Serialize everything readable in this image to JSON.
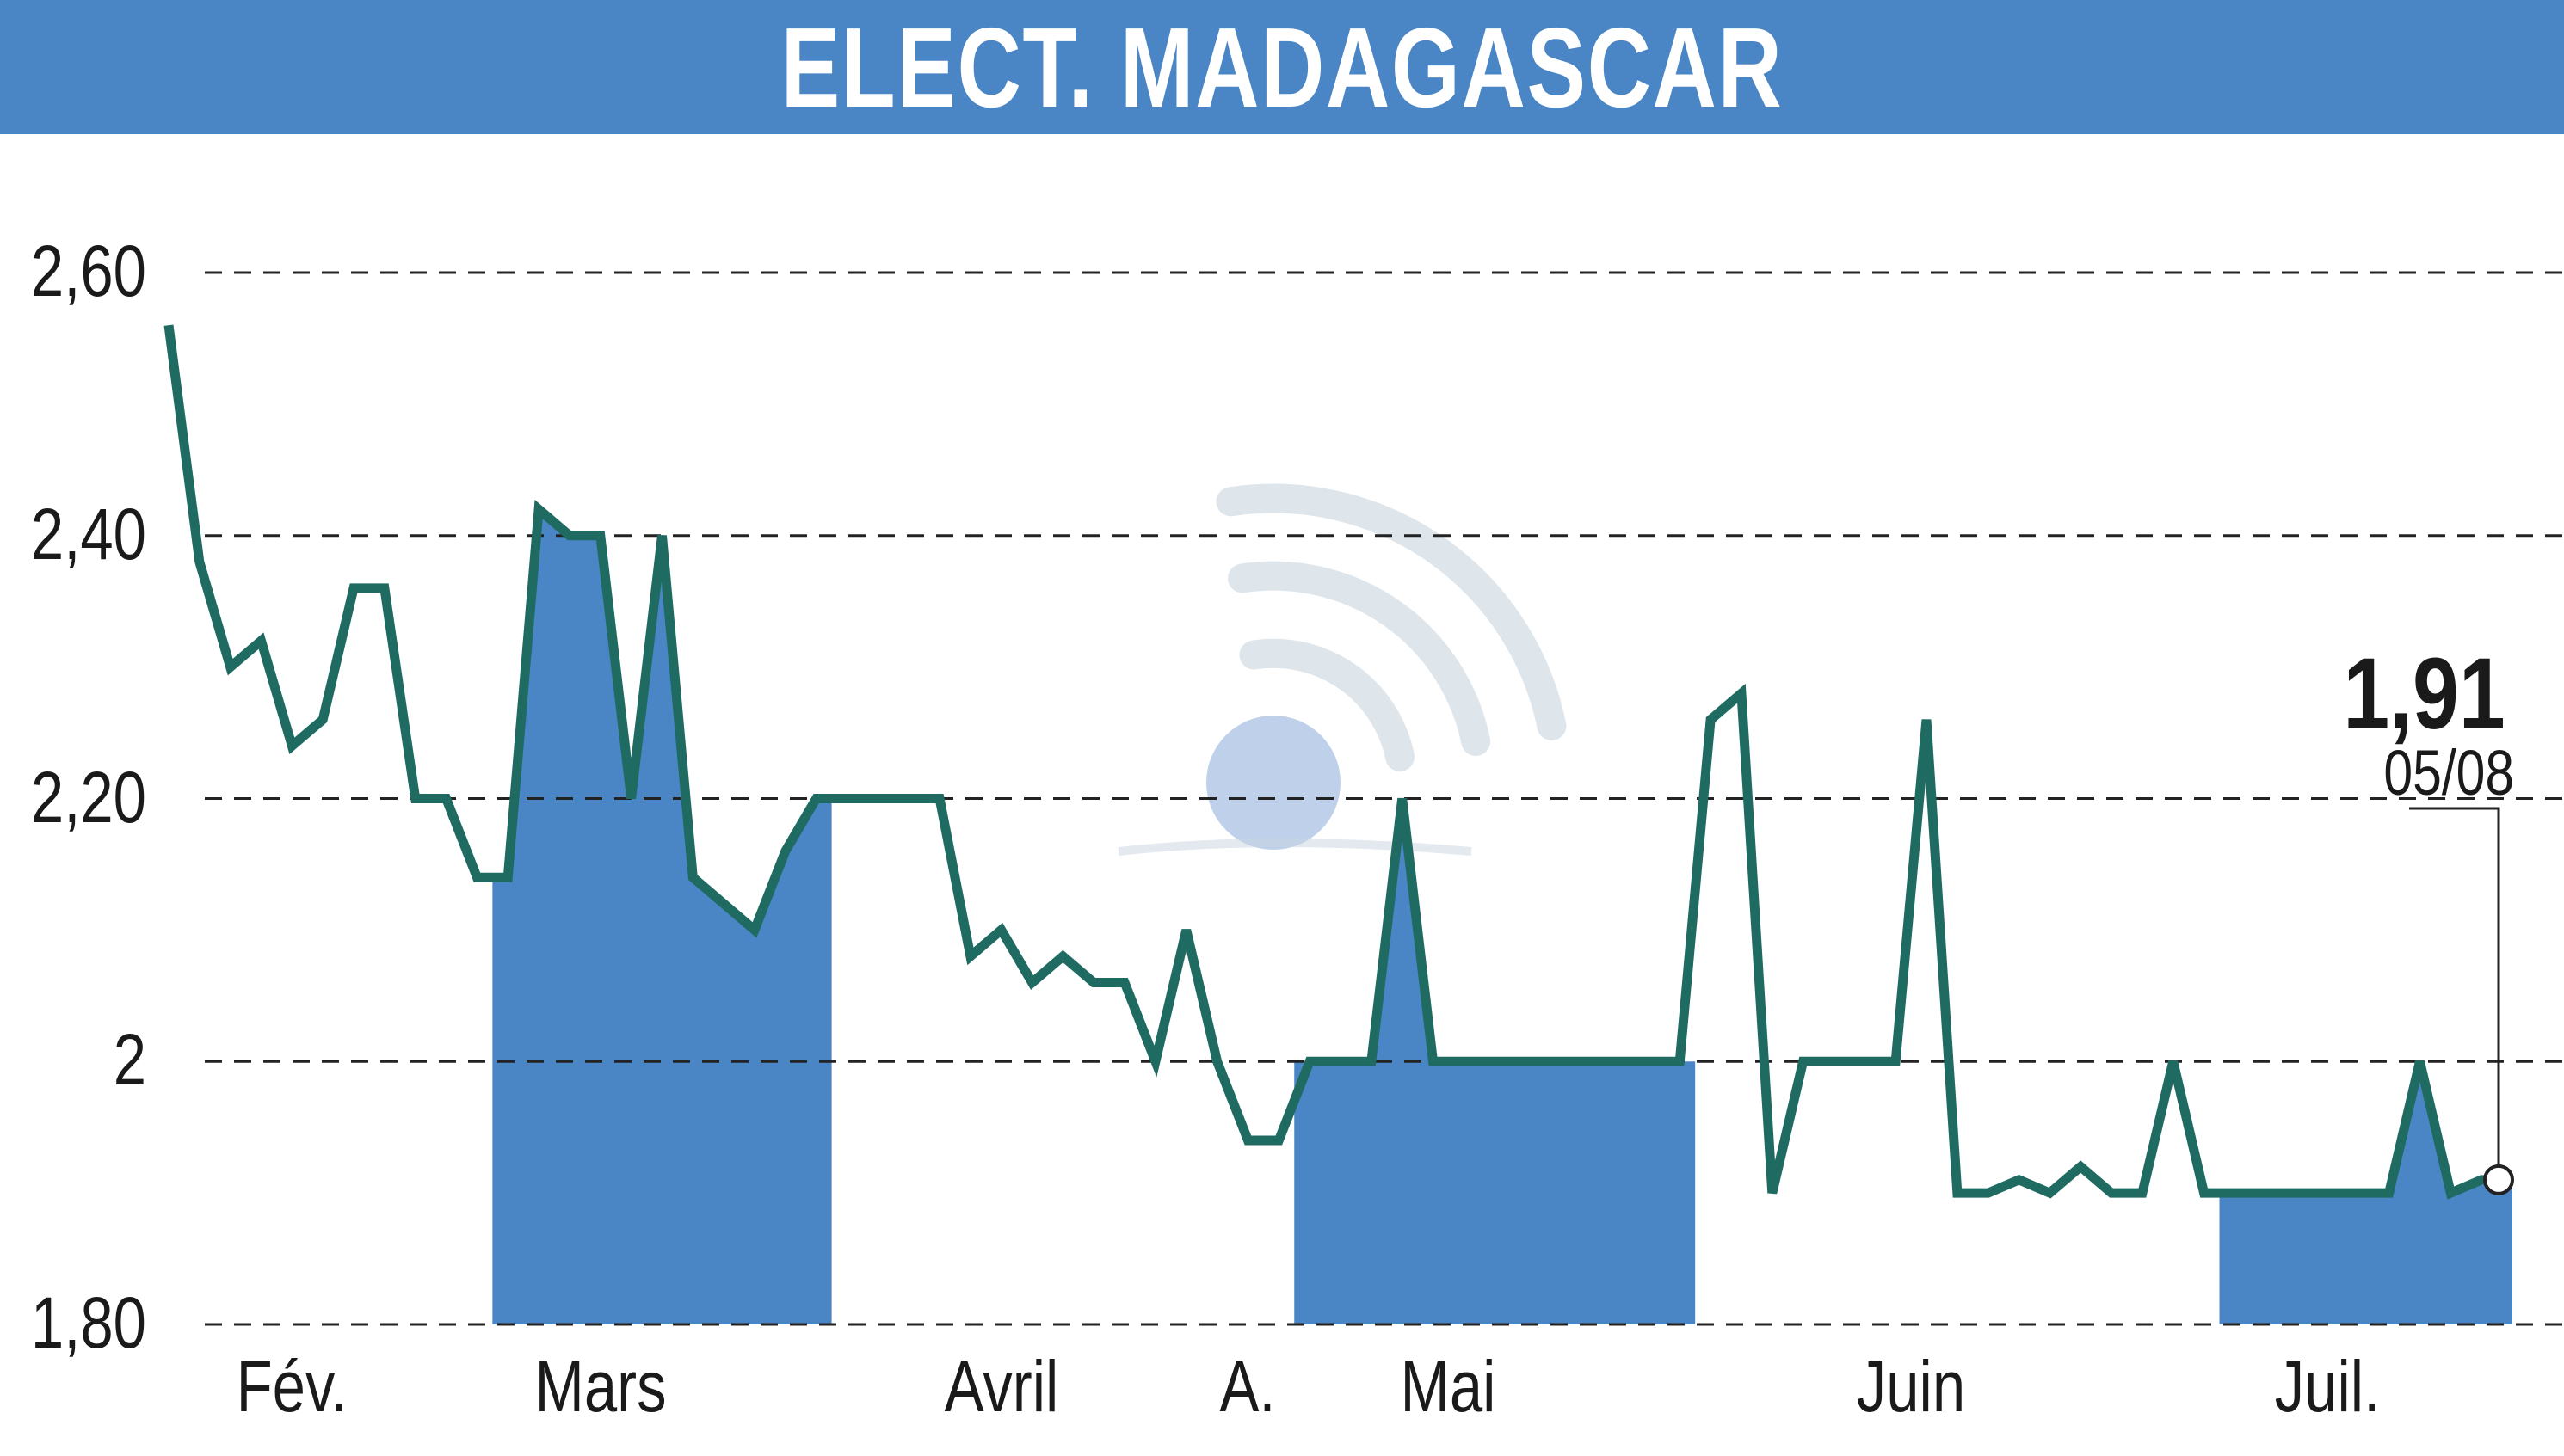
{
  "header": {
    "title": "ELECT. MADAGASCAR"
  },
  "colors": {
    "title_bar": "#4a86c5",
    "line": "#1f6b62",
    "fill": "#4a86c5",
    "grid": "#222222",
    "watermark": "#c8d3dd"
  },
  "watermark_icon": "broadcast-signal-icon",
  "chart_data": {
    "type": "line",
    "title": "ELECT. MADAGASCAR",
    "xlabel": "",
    "ylabel": "",
    "ylim": [
      1.8,
      2.63
    ],
    "yticks": [
      {
        "value": 2.6,
        "label": "2,60"
      },
      {
        "value": 2.4,
        "label": "2,40"
      },
      {
        "value": 2.2,
        "label": "2,20"
      },
      {
        "value": 2.0,
        "label": "2"
      },
      {
        "value": 1.8,
        "label": "1,80"
      }
    ],
    "grid": true,
    "xlim": [
      0,
      76
    ],
    "month_labels": [
      {
        "label": "Fév.",
        "pos": 4.0
      },
      {
        "label": "Mars",
        "pos": 14.0
      },
      {
        "label": "Avril",
        "pos": 27.0
      },
      {
        "label": "A.",
        "pos": 35.0
      },
      {
        "label": "Mai",
        "pos": 41.5
      },
      {
        "label": "Juin",
        "pos": 56.5
      },
      {
        "label": "Juil.",
        "pos": 70.0
      }
    ],
    "shaded_month_spans": [
      [
        10.5,
        21.5
      ],
      [
        36.5,
        49.5
      ],
      [
        66.5,
        76.0
      ]
    ],
    "series": [
      {
        "values": [
          [
            0,
            2.56
          ],
          [
            1,
            2.38
          ],
          [
            2,
            2.3
          ],
          [
            3,
            2.32
          ],
          [
            4,
            2.24
          ],
          [
            5,
            2.26
          ],
          [
            6,
            2.36
          ],
          [
            7,
            2.36
          ],
          [
            8,
            2.2
          ],
          [
            9,
            2.2
          ],
          [
            10,
            2.14
          ],
          [
            11,
            2.14
          ],
          [
            12,
            2.42
          ],
          [
            13,
            2.4
          ],
          [
            14,
            2.4
          ],
          [
            15,
            2.2
          ],
          [
            16,
            2.4
          ],
          [
            17,
            2.14
          ],
          [
            18,
            2.12
          ],
          [
            19,
            2.1
          ],
          [
            20,
            2.16
          ],
          [
            21,
            2.2
          ],
          [
            22,
            2.2
          ],
          [
            23,
            2.2
          ],
          [
            24,
            2.2
          ],
          [
            25,
            2.2
          ],
          [
            26,
            2.08
          ],
          [
            27,
            2.1
          ],
          [
            28,
            2.06
          ],
          [
            29,
            2.08
          ],
          [
            30,
            2.06
          ],
          [
            31,
            2.06
          ],
          [
            32,
            2.0
          ],
          [
            33,
            2.1
          ],
          [
            34,
            2.0
          ],
          [
            35,
            1.94
          ],
          [
            36,
            1.94
          ],
          [
            37,
            2.0
          ],
          [
            38,
            2.0
          ],
          [
            39,
            2.0
          ],
          [
            40,
            2.2
          ],
          [
            41,
            2.0
          ],
          [
            42,
            2.0
          ],
          [
            43,
            2.0
          ],
          [
            44,
            2.0
          ],
          [
            45,
            2.0
          ],
          [
            46,
            2.0
          ],
          [
            47,
            2.0
          ],
          [
            48,
            2.0
          ],
          [
            49,
            2.0
          ],
          [
            50,
            2.26
          ],
          [
            51,
            2.28
          ],
          [
            52,
            1.9
          ],
          [
            53,
            2.0
          ],
          [
            54,
            2.0
          ],
          [
            55,
            2.0
          ],
          [
            56,
            2.0
          ],
          [
            57,
            2.26
          ],
          [
            58,
            1.9
          ],
          [
            59,
            1.9
          ],
          [
            60,
            1.91
          ],
          [
            61,
            1.9
          ],
          [
            62,
            1.92
          ],
          [
            63,
            1.9
          ],
          [
            64,
            1.9
          ],
          [
            65,
            2.0
          ],
          [
            66,
            1.9
          ],
          [
            67,
            1.9
          ],
          [
            68,
            1.9
          ],
          [
            69,
            1.9
          ],
          [
            70,
            1.9
          ],
          [
            71,
            1.9
          ],
          [
            72,
            1.9
          ],
          [
            73,
            2.0
          ],
          [
            74,
            1.9
          ],
          [
            75,
            1.91
          ],
          [
            76,
            1.91
          ]
        ]
      }
    ],
    "last_point": {
      "label": "1,91",
      "date": "05/08",
      "x": 76,
      "value": 1.91
    }
  }
}
